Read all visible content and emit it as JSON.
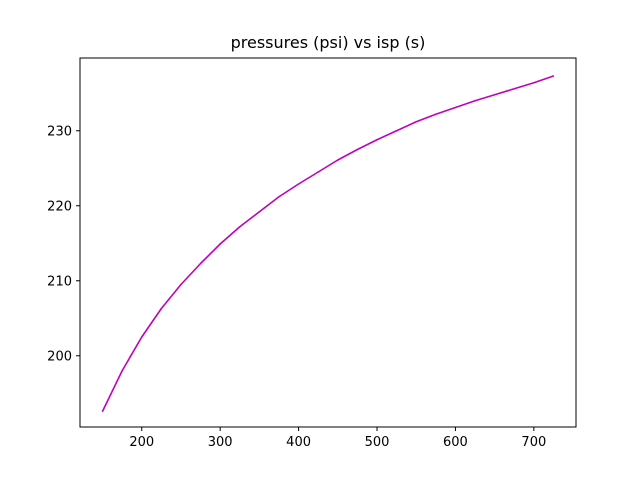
{
  "chart_data": {
    "type": "line",
    "title": "pressures (psi) vs isp (s)",
    "xlabel": "",
    "ylabel": "",
    "xlim": [
      121.25,
      753.75
    ],
    "ylim": [
      190.5,
      239.7
    ],
    "x_ticks": [
      200,
      300,
      400,
      500,
      600,
      700
    ],
    "y_ticks": [
      200,
      210,
      220,
      230
    ],
    "grid": false,
    "legend": "none",
    "series": [
      {
        "color": "#bf00bf",
        "x": [
          150,
          175,
          200,
          225,
          250,
          275,
          300,
          325,
          350,
          375,
          400,
          425,
          450,
          475,
          500,
          525,
          550,
          575,
          600,
          625,
          650,
          675,
          700,
          725
        ],
        "y": [
          192.6,
          198.0,
          202.5,
          206.3,
          209.5,
          212.3,
          214.9,
          217.2,
          219.2,
          221.2,
          222.9,
          224.5,
          226.1,
          227.5,
          228.8,
          230.0,
          231.2,
          232.2,
          233.1,
          234.0,
          234.8,
          235.6,
          236.4,
          237.3
        ]
      }
    ]
  }
}
